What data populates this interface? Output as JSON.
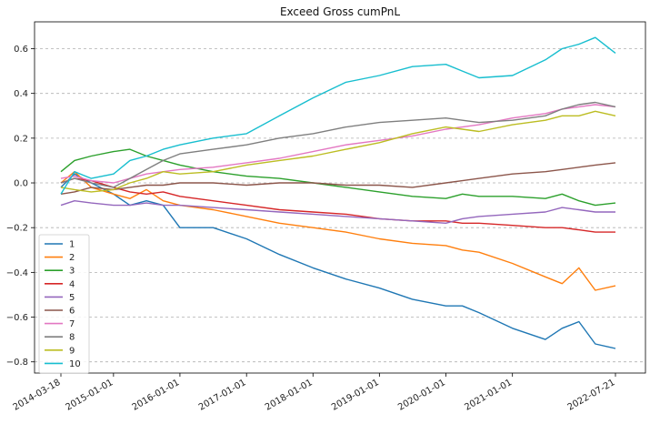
{
  "chart_data": {
    "type": "line",
    "title": "Exceed Gross cumPnL",
    "xlabel": "",
    "ylabel": "",
    "x_ticks": [
      "2014-03-18",
      "2015-01-01",
      "2016-01-01",
      "2017-01-01",
      "2018-01-01",
      "2019-01-01",
      "2020-01-01",
      "2021-01-01",
      "2022-07-21"
    ],
    "y_ticks": [
      "−0.8",
      "−0.6",
      "−0.4",
      "−0.2",
      "0.0",
      "0.2",
      "0.4",
      "0.6"
    ],
    "x_range": [
      "2014-03-18",
      "2022-07-21"
    ],
    "ylim": [
      -0.85,
      0.72
    ],
    "grid": "horizontal dashed",
    "legend_position": "lower-left",
    "x": [
      "2014-03-18",
      "2014-06-01",
      "2014-09-01",
      "2015-01-01",
      "2015-04-01",
      "2015-07-01",
      "2015-10-01",
      "2016-01-01",
      "2016-07-01",
      "2017-01-01",
      "2017-07-01",
      "2018-01-01",
      "2018-07-01",
      "2019-01-01",
      "2019-07-01",
      "2020-01-01",
      "2020-04-01",
      "2020-07-01",
      "2021-01-01",
      "2021-07-01",
      "2021-10-01",
      "2022-01-01",
      "2022-04-01",
      "2022-07-21"
    ],
    "series": [
      {
        "name": "1",
        "color": "#1f77b4",
        "values": [
          -0.02,
          0.04,
          0.0,
          -0.05,
          -0.1,
          -0.08,
          -0.1,
          -0.2,
          -0.2,
          -0.25,
          -0.32,
          -0.38,
          -0.43,
          -0.47,
          -0.52,
          -0.55,
          -0.55,
          -0.58,
          -0.65,
          -0.7,
          -0.65,
          -0.62,
          -0.72,
          -0.74
        ]
      },
      {
        "name": "2",
        "color": "#ff7f0e",
        "values": [
          0.0,
          0.05,
          -0.02,
          -0.05,
          -0.07,
          -0.03,
          -0.08,
          -0.1,
          -0.12,
          -0.15,
          -0.18,
          -0.2,
          -0.22,
          -0.25,
          -0.27,
          -0.28,
          -0.3,
          -0.31,
          -0.36,
          -0.42,
          -0.45,
          -0.38,
          -0.48,
          -0.46
        ]
      },
      {
        "name": "3",
        "color": "#2ca02c",
        "values": [
          0.05,
          0.1,
          0.12,
          0.14,
          0.15,
          0.12,
          0.1,
          0.08,
          0.05,
          0.03,
          0.02,
          0.0,
          -0.02,
          -0.04,
          -0.06,
          -0.07,
          -0.05,
          -0.06,
          -0.06,
          -0.07,
          -0.05,
          -0.08,
          -0.1,
          -0.09
        ]
      },
      {
        "name": "4",
        "color": "#d62728",
        "values": [
          0.0,
          0.02,
          0.01,
          -0.02,
          -0.04,
          -0.05,
          -0.04,
          -0.06,
          -0.08,
          -0.1,
          -0.12,
          -0.13,
          -0.14,
          -0.16,
          -0.17,
          -0.17,
          -0.18,
          -0.18,
          -0.19,
          -0.2,
          -0.2,
          -0.21,
          -0.22,
          -0.22
        ]
      },
      {
        "name": "5",
        "color": "#9467bd",
        "values": [
          -0.1,
          -0.08,
          -0.09,
          -0.1,
          -0.1,
          -0.09,
          -0.1,
          -0.1,
          -0.11,
          -0.12,
          -0.13,
          -0.14,
          -0.15,
          -0.16,
          -0.17,
          -0.18,
          -0.16,
          -0.15,
          -0.14,
          -0.13,
          -0.11,
          -0.12,
          -0.13,
          -0.13
        ]
      },
      {
        "name": "6",
        "color": "#8c564b",
        "values": [
          -0.05,
          -0.04,
          -0.02,
          -0.03,
          -0.02,
          -0.01,
          -0.01,
          0.0,
          0.0,
          -0.01,
          0.0,
          0.0,
          -0.01,
          -0.01,
          -0.02,
          0.0,
          0.01,
          0.02,
          0.04,
          0.05,
          0.06,
          0.07,
          0.08,
          0.09
        ]
      },
      {
        "name": "7",
        "color": "#e377c2",
        "values": [
          0.02,
          0.03,
          0.01,
          0.0,
          0.02,
          0.04,
          0.05,
          0.06,
          0.07,
          0.09,
          0.11,
          0.14,
          0.17,
          0.19,
          0.21,
          0.24,
          0.25,
          0.26,
          0.29,
          0.31,
          0.33,
          0.34,
          0.35,
          0.34
        ]
      },
      {
        "name": "8",
        "color": "#7f7f7f",
        "values": [
          0.0,
          0.02,
          0.0,
          -0.02,
          0.02,
          0.06,
          0.1,
          0.13,
          0.15,
          0.17,
          0.2,
          0.22,
          0.25,
          0.27,
          0.28,
          0.29,
          0.28,
          0.27,
          0.28,
          0.3,
          0.33,
          0.35,
          0.36,
          0.34
        ]
      },
      {
        "name": "9",
        "color": "#bcbd22",
        "values": [
          -0.02,
          -0.03,
          -0.04,
          -0.03,
          0.0,
          0.02,
          0.05,
          0.04,
          0.05,
          0.08,
          0.1,
          0.12,
          0.15,
          0.18,
          0.22,
          0.25,
          0.24,
          0.23,
          0.26,
          0.28,
          0.3,
          0.3,
          0.32,
          0.3
        ]
      },
      {
        "name": "10",
        "color": "#17becf",
        "values": [
          -0.05,
          0.05,
          0.02,
          0.04,
          0.1,
          0.12,
          0.15,
          0.17,
          0.2,
          0.22,
          0.3,
          0.38,
          0.45,
          0.48,
          0.52,
          0.53,
          0.5,
          0.47,
          0.48,
          0.55,
          0.6,
          0.62,
          0.65,
          0.58
        ]
      }
    ]
  }
}
